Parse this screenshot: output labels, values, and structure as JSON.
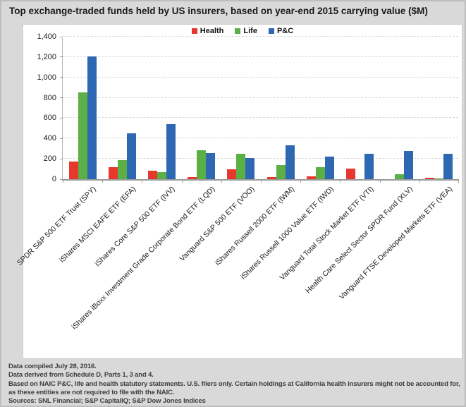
{
  "title": "Top exchange-traded funds held by US insurers, based on year-end 2015 carrying value ($M)",
  "chart_data": {
    "type": "bar",
    "title": "Top exchange-traded funds held by US insurers, based on year-end 2015 carrying value ($M)",
    "categories": [
      "SPDR S&P 500 ETF Trust (SPY)",
      "iShares MSCI EAFE ETF (EFA)",
      "iShares Core S&P 500 ETF (IVV)",
      "iShares iBoxx Investment Grade Corporate Bond ETF (LQD)",
      "Vanguard S&P 500 ETF (VOO)",
      "iShares Russell 2000 ETF (IWM)",
      "iShares Russell 1000 Value ETF (IWD)",
      "Vanguard Total Stock Market ETF (VTI)",
      "Health Care Select Sector SPDR Fund (XLV)",
      "Vanguard FTSE Developed Markets ETF (VEA)"
    ],
    "series": [
      {
        "name": "Health",
        "color": "#e8382e",
        "values": [
          172,
          115,
          85,
          18,
          98,
          18,
          25,
          105,
          0,
          15
        ]
      },
      {
        "name": "Life",
        "color": "#5bb045",
        "values": [
          855,
          185,
          72,
          287,
          247,
          142,
          118,
          0,
          48,
          10
        ]
      },
      {
        "name": "P&C",
        "color": "#2e68b2",
        "values": [
          1205,
          450,
          540,
          256,
          210,
          330,
          221,
          247,
          274,
          252
        ]
      }
    ],
    "xlabel": "",
    "ylabel": "",
    "ylim": [
      0,
      1400
    ],
    "yticks": [
      "0",
      "200",
      "400",
      "600",
      "800",
      "1,000",
      "1,200",
      "1,400"
    ],
    "grid": true,
    "legend_position": "top-center"
  },
  "footnotes": [
    "Data compiled July 28, 2016.",
    "Data derived from Schedule D, Parts 1, 3 and 4.",
    "Based on NAIC P&C, life and health statutory statements. U.S. filers only. Certain holdings at California health insurers might not be accounted for, as these entities are not required to file with the NAIC.",
    "Sources: SNL Financial; S&P CapitalIQ; S&P Dow Jones Indices"
  ]
}
